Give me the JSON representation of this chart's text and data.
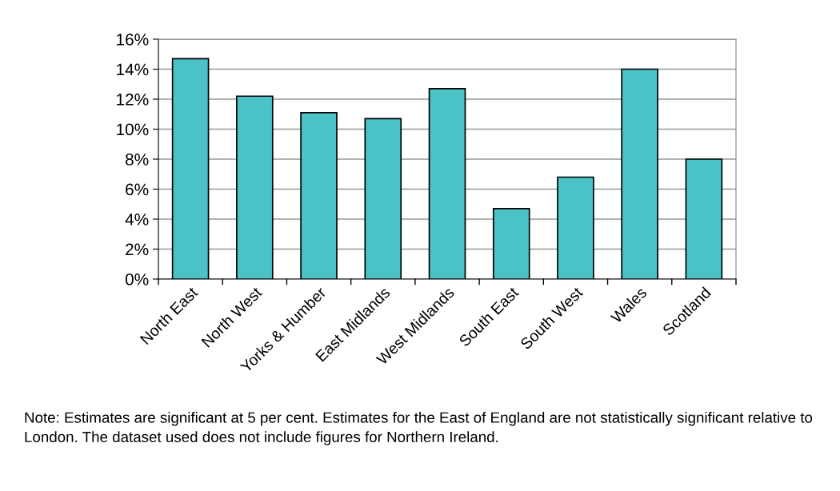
{
  "chart_data": {
    "type": "bar",
    "categories": [
      "North East",
      "North West",
      "Yorks & Humber",
      "East Midlands",
      "West Midlands",
      "South East",
      "South West",
      "Wales",
      "Scotland"
    ],
    "values": [
      14.7,
      12.2,
      11.1,
      10.7,
      12.7,
      4.7,
      6.8,
      14.0,
      8.0
    ],
    "color": "#4bc2c5",
    "ylim": [
      0,
      16
    ],
    "yticks": [
      {
        "value": 0,
        "label": "0%"
      },
      {
        "value": 2,
        "label": "2%"
      },
      {
        "value": 4,
        "label": "4%"
      },
      {
        "value": 6,
        "label": "6%"
      },
      {
        "value": 8,
        "label": "8%"
      },
      {
        "value": 10,
        "label": "10%"
      },
      {
        "value": 12,
        "label": "12%"
      },
      {
        "value": 14,
        "label": "14%"
      },
      {
        "value": 16,
        "label": "16%"
      }
    ],
    "grid": "y",
    "annotations": [
      "Note: Estimates are significant at 5 per cent. Estimates for the East of England are not statistically significant relative to London. The dataset used does not include figures for Northern Ireland."
    ]
  }
}
